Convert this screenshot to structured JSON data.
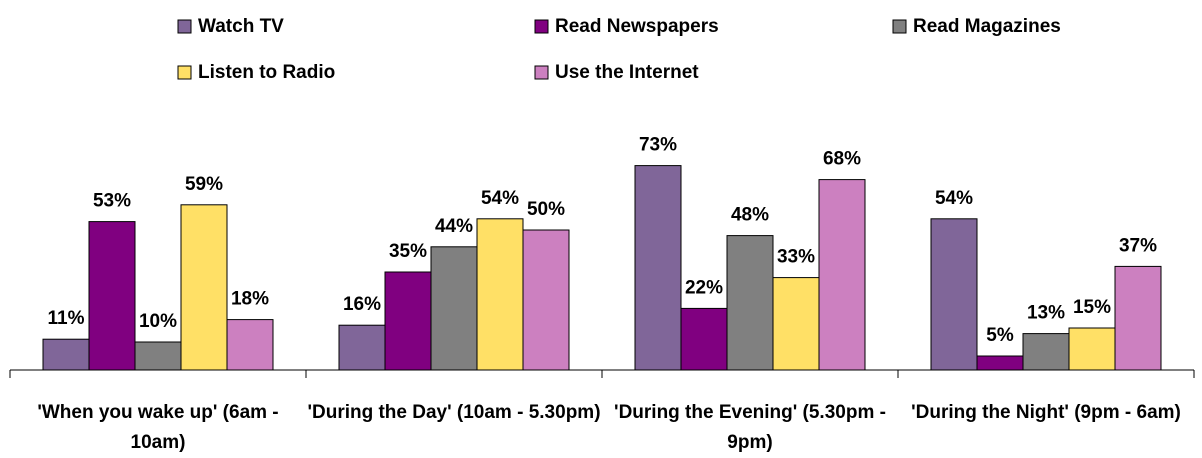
{
  "chart_data": {
    "type": "bar",
    "categories": [
      "'When you wake up' (6am - 10am)",
      "'During the Day' (10am - 5.30pm)",
      "'During the Evening' (5.30pm - 9pm)",
      "'During the Night' (9pm - 6am)"
    ],
    "series": [
      {
        "name": "Watch TV",
        "color": "#806699",
        "values": [
          11,
          16,
          73,
          54
        ],
        "value_labels": [
          "11%",
          "16%",
          "73%",
          "54%"
        ]
      },
      {
        "name": "Read Newspapers",
        "color": "#800080",
        "values": [
          53,
          35,
          22,
          5
        ],
        "value_labels": [
          "53%",
          "35%",
          "22%",
          "5%"
        ]
      },
      {
        "name": "Read Magazines",
        "color": "#808080",
        "values": [
          10,
          44,
          48,
          13
        ],
        "value_labels": [
          "10%",
          "44%",
          "48%",
          "13%"
        ]
      },
      {
        "name": "Listen to Radio",
        "color": "#ffe066",
        "values": [
          59,
          54,
          33,
          15
        ],
        "value_labels": [
          "59%",
          "54%",
          "33%",
          "15%"
        ]
      },
      {
        "name": "Use the Internet",
        "color": "#cc80c0",
        "values": [
          18,
          50,
          68,
          37
        ],
        "value_labels": [
          "18%",
          "50%",
          "68%",
          "37%"
        ]
      }
    ],
    "ylim": [
      0,
      80
    ],
    "legend": "top"
  }
}
